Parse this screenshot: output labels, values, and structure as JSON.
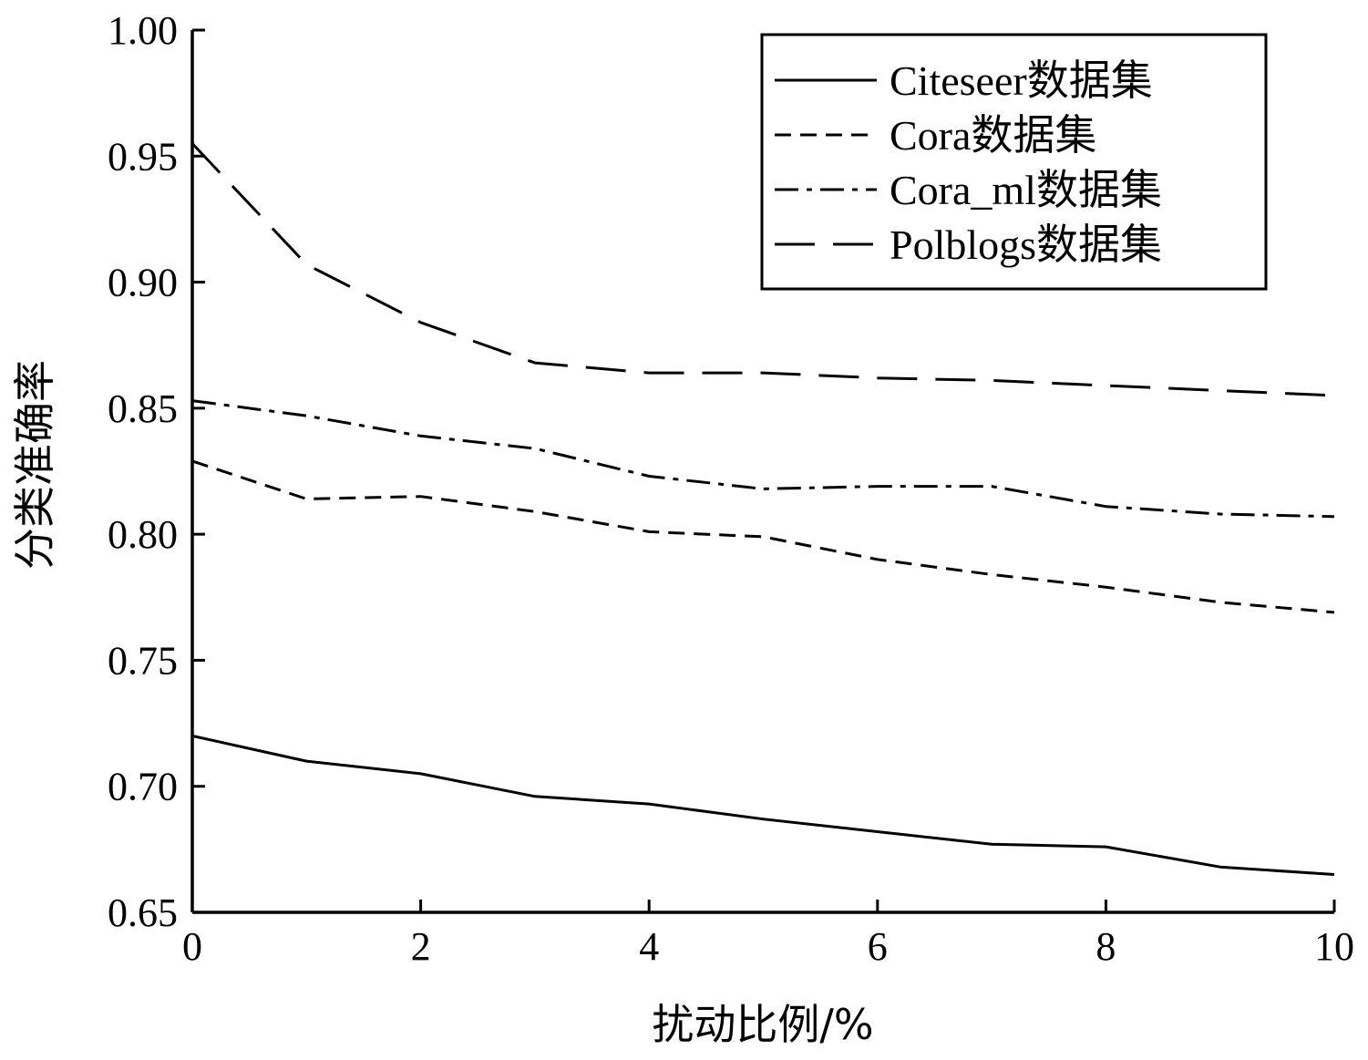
{
  "chart_data": {
    "type": "line",
    "title": "",
    "xlabel": "扰动比例/%",
    "ylabel": "分类准确率",
    "xlim": [
      0,
      10
    ],
    "ylim": [
      0.65,
      1.0
    ],
    "xticks": [
      "0",
      "2",
      "4",
      "6",
      "8",
      "10"
    ],
    "yticks": [
      "0.65",
      "0.70",
      "0.75",
      "0.80",
      "0.85",
      "0.90",
      "0.95",
      "1.00"
    ],
    "grid": false,
    "legend_position": "top-right",
    "x": [
      0,
      1,
      2,
      3,
      4,
      5,
      6,
      7,
      8,
      9,
      10
    ],
    "series": [
      {
        "name": "Citeseer数据集",
        "style": "solid",
        "values": [
          0.72,
          0.71,
          0.705,
          0.696,
          0.693,
          0.687,
          0.682,
          0.677,
          0.676,
          0.668,
          0.665
        ]
      },
      {
        "name": "Cora数据集",
        "style": "dashed-short",
        "values": [
          0.829,
          0.814,
          0.815,
          0.809,
          0.801,
          0.799,
          0.79,
          0.784,
          0.779,
          0.773,
          0.769
        ]
      },
      {
        "name": "Cora_ml数据集",
        "style": "dash-dot",
        "values": [
          0.853,
          0.847,
          0.839,
          0.834,
          0.823,
          0.818,
          0.819,
          0.819,
          0.811,
          0.808,
          0.807
        ]
      },
      {
        "name": "Polblogs数据集",
        "style": "dashed-long",
        "values": [
          0.955,
          0.907,
          0.884,
          0.868,
          0.864,
          0.864,
          0.862,
          0.861,
          0.859,
          0.857,
          0.855
        ]
      }
    ]
  }
}
